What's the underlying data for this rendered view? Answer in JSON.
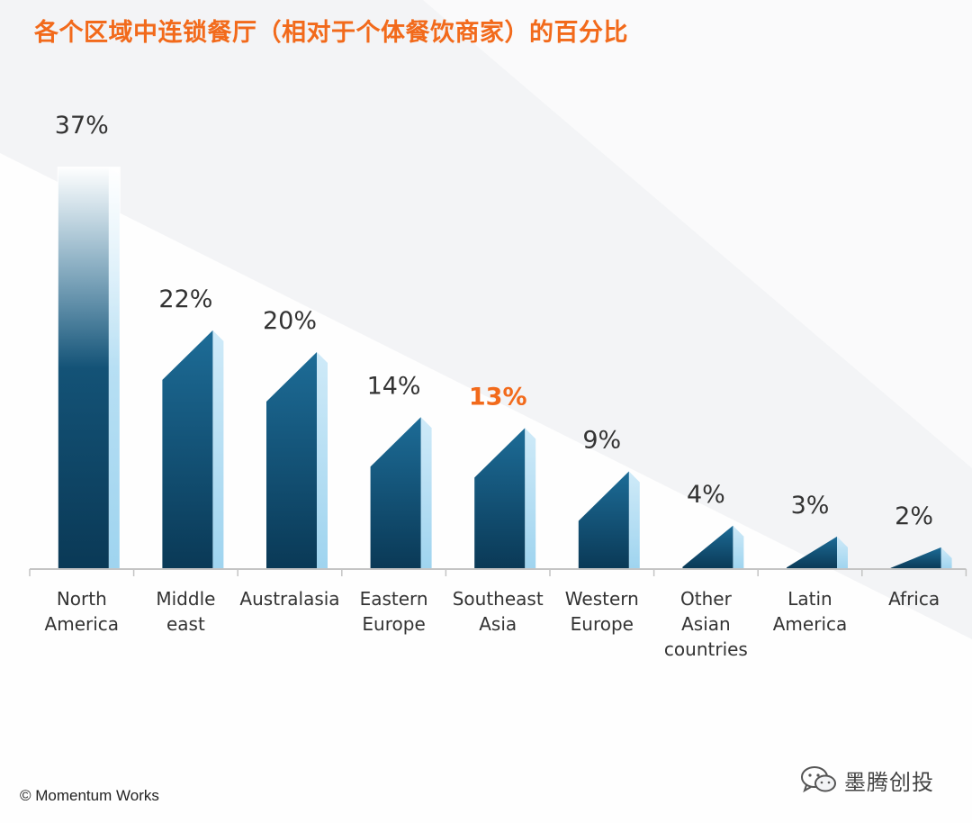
{
  "title": "各个区域中连锁餐厅（相对于个体餐饮商家）的百分比",
  "copyright": "© Momentum Works",
  "watermark": {
    "text": "墨腾创投",
    "icon": "wechat-icon"
  },
  "colors": {
    "title": "#f26a1b",
    "bar_dark": "#0c3e5c",
    "bar_mid": "#1d6c97",
    "bar_light": "#a8daf3",
    "highlight": "#f26a1b",
    "label": "#333333"
  },
  "chart_data": {
    "type": "bar",
    "title": "各个区域中连锁餐厅（相对于个体餐饮商家）的百分比",
    "unit": "%",
    "ylim": [
      0,
      40
    ],
    "grid": false,
    "categories": [
      [
        "North",
        "America"
      ],
      [
        "Middle",
        "east"
      ],
      [
        "Australasia"
      ],
      [
        "Eastern",
        "Europe"
      ],
      [
        "Southeast",
        "Asia"
      ],
      [
        "Western",
        "Europe"
      ],
      [
        "Other",
        "Asian",
        "countries"
      ],
      [
        "Latin",
        "America"
      ],
      [
        "Africa"
      ]
    ],
    "values": [
      37,
      22,
      20,
      14,
      13,
      9,
      4,
      3,
      2
    ],
    "labels": [
      "37%",
      "22%",
      "20%",
      "14%",
      "13%",
      "9%",
      "4%",
      "3%",
      "2%"
    ],
    "highlight_index": 4
  }
}
